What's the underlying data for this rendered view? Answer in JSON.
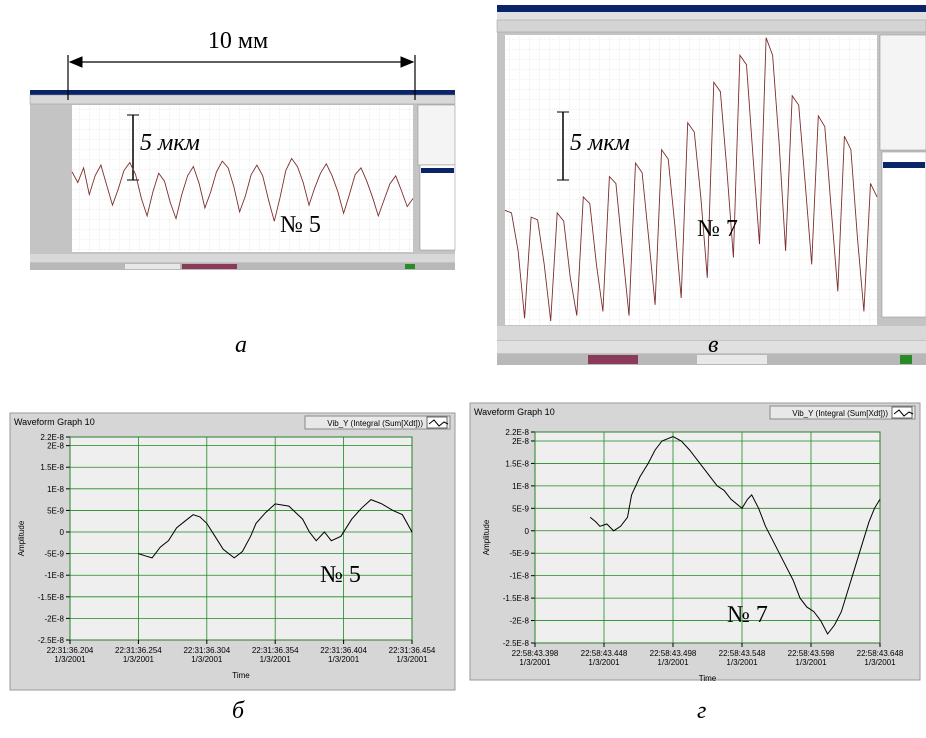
{
  "chart_data": [
    {
      "type": "line",
      "label": "№ 5",
      "scale_label": "5 мкм",
      "span_label": "10 мм",
      "caption": "а",
      "color": "#7d2e2e",
      "ylim": [
        -5.5,
        5.5
      ],
      "values": [
        0.5,
        -0.3,
        0.8,
        -1.2,
        0.2,
        1.0,
        -0.5,
        -2.0,
        -0.8,
        0.6,
        1.2,
        0.3,
        -1.5,
        -2.8,
        -1.0,
        0.4,
        -0.2,
        -1.8,
        -3.0,
        -1.2,
        0.2,
        0.9,
        -0.4,
        -2.2,
        -1.0,
        0.5,
        1.3,
        0.8,
        -0.6,
        -2.5,
        -1.3,
        0.3,
        1.0,
        0.2,
        -1.6,
        -3.2,
        -1.4,
        0.6,
        1.5,
        0.9,
        -0.3,
        -2.0,
        -0.7,
        0.4,
        1.1,
        0.2,
        -1.0,
        -2.6,
        -1.2,
        0.3,
        0.8,
        -0.2,
        -1.4,
        -2.8,
        -1.6,
        -0.4,
        0.2,
        -0.9,
        -2.1,
        -1.5
      ]
    },
    {
      "type": "line",
      "label": "№ 7",
      "scale_label": "5 мкм",
      "caption": "в",
      "color": "#7d2e2e",
      "ylim": [
        -7.5,
        14
      ],
      "values": [
        1.0,
        0.8,
        -2,
        -7,
        0.5,
        0.3,
        -3,
        -7.2,
        0.8,
        0.2,
        -4,
        -6.8,
        2.0,
        1.5,
        -3,
        -6.5,
        3.5,
        3.0,
        -2,
        -6.8,
        4.5,
        3.8,
        -1,
        -6.0,
        5.5,
        4.8,
        0,
        -5.5,
        7.5,
        6.8,
        2,
        -4,
        10.5,
        9.8,
        4,
        -2.5,
        12.5,
        11.8,
        5,
        -1.5,
        13.8,
        12.5,
        6,
        -2,
        9.5,
        8.8,
        3,
        -3,
        8.0,
        7.2,
        1,
        -5,
        6.5,
        5.5,
        -1,
        -6.5,
        3.0,
        2.0
      ]
    },
    {
      "type": "line",
      "title": "Waveform Graph 10",
      "label": "№ 5",
      "caption": "б",
      "ylabel": "Amplitude",
      "xlabel": "Time",
      "grid": true,
      "xlim": [
        36.204,
        36.454
      ],
      "ylim": [
        -2.5e-08,
        2.2e-08
      ],
      "xticks": [
        {
          "value": 36.204,
          "label": "22:31:36.204\n1/3/2001"
        },
        {
          "value": 36.254,
          "label": "22:31:36.254\n1/3/2001"
        },
        {
          "value": 36.304,
          "label": "22:31:36.304\n1/3/2001"
        },
        {
          "value": 36.354,
          "label": "22:31:36.354\n1/3/2001"
        },
        {
          "value": 36.404,
          "label": "22:31:36.404\n1/3/2001"
        },
        {
          "value": 36.454,
          "label": "22:31:36.454\n1/3/2001"
        }
      ],
      "yticks": [
        {
          "value": 2.2e-08,
          "label": "2.2E-8"
        },
        {
          "value": 2e-08,
          "label": "2E-8"
        },
        {
          "value": 1.5e-08,
          "label": "1.5E-8"
        },
        {
          "value": 1e-08,
          "label": "1E-8"
        },
        {
          "value": 5e-09,
          "label": "5E-9"
        },
        0,
        {
          "value": -5e-09,
          "label": "-5E-9"
        },
        {
          "value": -1e-08,
          "label": "-1E-8"
        },
        {
          "value": -1.5e-08,
          "label": "-1.5E-8"
        },
        {
          "value": -2e-08,
          "label": "-2E-8"
        },
        {
          "value": -2.5e-08,
          "label": "-2.5E-8"
        }
      ],
      "x": [
        36.254,
        36.259,
        36.264,
        36.27,
        36.276,
        36.282,
        36.288,
        36.294,
        36.299,
        36.304,
        36.31,
        36.316,
        36.324,
        36.33,
        36.336,
        36.34,
        36.347,
        36.354,
        36.364,
        36.369,
        36.374,
        36.379,
        36.384,
        36.39,
        36.395,
        36.402,
        36.41,
        36.417,
        36.424,
        36.432,
        36.44,
        36.447,
        36.454
      ],
      "series": [
        {
          "name": "Vib_Y (Integral (Sum[Xdt]))",
          "color": "#000000",
          "values": [
            -5e-09,
            -5.5e-09,
            -6e-09,
            -3.5e-09,
            -2e-09,
            1e-09,
            2.5e-09,
            4e-09,
            3.5e-09,
            2e-09,
            -1e-09,
            -4e-09,
            -6e-09,
            -4.5e-09,
            -1e-09,
            2e-09,
            4.5e-09,
            6.5e-09,
            6e-09,
            4.5e-09,
            3e-09,
            0,
            -2e-09,
            0,
            -2e-09,
            -1e-09,
            3e-09,
            5.5e-09,
            7.5e-09,
            6.5e-09,
            5e-09,
            4e-09,
            0
          ]
        }
      ]
    },
    {
      "type": "line",
      "title": "Waveform Graph 10",
      "label": "№ 7",
      "caption": "г",
      "ylabel": "Amplitude",
      "xlabel": "Time",
      "grid": true,
      "xlim": [
        43.398,
        43.648
      ],
      "ylim": [
        -2.5e-08,
        2.2e-08
      ],
      "xticks": [
        {
          "value": 43.398,
          "label": "22:58:43.398\n1/3/2001"
        },
        {
          "value": 43.448,
          "label": "22:58:43.448\n1/3/2001"
        },
        {
          "value": 43.498,
          "label": "22:58:43.498\n1/3/2001"
        },
        {
          "value": 43.548,
          "label": "22:58:43.548\n1/3/2001"
        },
        {
          "value": 43.598,
          "label": "22:58:43.598\n1/3/2001"
        },
        {
          "value": 43.648,
          "label": "22:58:43.648\n1/3/2001"
        }
      ],
      "yticks": [
        {
          "value": 2.2e-08,
          "label": "2.2E-8"
        },
        {
          "value": 2e-08,
          "label": "2E-8"
        },
        {
          "value": 1.5e-08,
          "label": "1.5E-8"
        },
        {
          "value": 1e-08,
          "label": "1E-8"
        },
        {
          "value": 5e-09,
          "label": "5E-9"
        },
        0,
        {
          "value": -5e-09,
          "label": "-5E-9"
        },
        {
          "value": -1e-08,
          "label": "-1E-8"
        },
        {
          "value": -1.5e-08,
          "label": "-1.5E-8"
        },
        {
          "value": -2e-08,
          "label": "-2E-8"
        },
        {
          "value": -2.5e-08,
          "label": "-2.5E-8"
        }
      ],
      "x": [
        43.438,
        43.442,
        43.445,
        43.45,
        43.455,
        43.46,
        43.465,
        43.468,
        43.474,
        43.48,
        43.485,
        43.49,
        43.498,
        43.504,
        43.51,
        43.515,
        43.52,
        43.525,
        43.53,
        43.535,
        43.54,
        43.548,
        43.552,
        43.555,
        43.56,
        43.565,
        43.57,
        43.575,
        43.58,
        43.585,
        43.59,
        43.595,
        43.6,
        43.605,
        43.61,
        43.615,
        43.62,
        43.625,
        43.63,
        43.635,
        43.64,
        43.644,
        43.648
      ],
      "series": [
        {
          "name": "Vib_Y (Integral (Sum[Xdt]))",
          "color": "#000000",
          "values": [
            3e-09,
            2e-09,
            1e-09,
            1.5e-09,
            0,
            1e-09,
            3e-09,
            8e-09,
            1.2e-08,
            1.5e-08,
            1.8e-08,
            2e-08,
            2.1e-08,
            2e-08,
            1.8e-08,
            1.6e-08,
            1.4e-08,
            1.2e-08,
            1e-08,
            9e-09,
            7e-09,
            5e-09,
            7e-09,
            8e-09,
            5e-09,
            1e-09,
            -2e-09,
            -5e-09,
            -8e-09,
            -1.1e-08,
            -1.5e-08,
            -1.7e-08,
            -1.8e-08,
            -2e-08,
            -2.3e-08,
            -2.1e-08,
            -1.8e-08,
            -1.3e-08,
            -8e-09,
            -3e-09,
            2e-09,
            5e-09,
            7e-09
          ]
        }
      ]
    }
  ]
}
